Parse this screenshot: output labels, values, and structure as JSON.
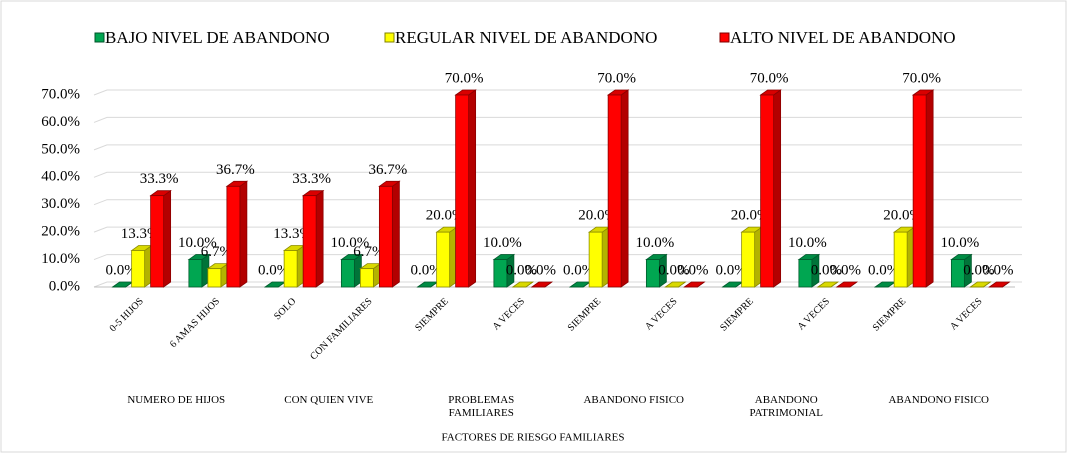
{
  "chart_data": {
    "type": "bar3d",
    "xlabel": "FACTORES DE RIESGO FAMILIARES",
    "groups": [
      {
        "name": "NUMERO DE HIJOS",
        "categories": [
          "0-5 HIJOS",
          "6 AMAS HIJOS"
        ]
      },
      {
        "name": "CON QUIEN VIVE",
        "categories": [
          "SOLO",
          "CON FAMILIARES"
        ]
      },
      {
        "name": "PROBLEMAS FAMILIARES",
        "categories": [
          "SIEMPRE",
          "A VECES"
        ]
      },
      {
        "name": "ABANDONO FISICO",
        "categories": [
          "SIEMPRE",
          "A VECES"
        ]
      },
      {
        "name": "ABANDONO PATRIMONIAL",
        "categories": [
          "SIEMPRE",
          "A VECES"
        ]
      },
      {
        "name": "ABANDONO FISICO",
        "categories": [
          "SIEMPRE",
          "A VECES"
        ]
      }
    ],
    "series": [
      {
        "name": "BAJO NIVEL DE ABANDONO",
        "color": "#00a651",
        "values": [
          0,
          10,
          0,
          10,
          0,
          10,
          0,
          10,
          0,
          10,
          0,
          10
        ],
        "value_labels": [
          "0.0%",
          "10.0%",
          "0.0%",
          "10.0%",
          "0.0%",
          "10.0%",
          "0.0%",
          "10.0%",
          "0.0%",
          "10.0%",
          "0.0%",
          "10.0%"
        ]
      },
      {
        "name": "REGULAR NIVEL DE ABANDONO",
        "color": "#ffff00",
        "values": [
          13.3,
          6.7,
          13.3,
          6.7,
          20,
          0,
          20,
          0,
          20,
          0,
          20,
          0
        ],
        "value_labels": [
          "13.3%",
          "6.7%",
          "13.3%",
          "6.7%",
          "20.0%",
          "0.0%",
          "20.0%",
          "0.0%",
          "20.0%",
          "0.0%",
          "20.0%",
          "0.0%"
        ]
      },
      {
        "name": "ALTO NIVEL DE ABANDONO",
        "color": "#ff0000",
        "values": [
          33.3,
          36.7,
          33.3,
          36.7,
          70,
          0,
          70,
          0,
          70,
          0,
          70,
          0
        ],
        "value_labels": [
          "33.3%",
          "36.7%",
          "33.3%",
          "36.7%",
          "70.0%",
          "0.0%",
          "70.0%",
          "0.0%",
          "70.0%",
          "0.0%",
          "70.0%",
          "0.0%"
        ]
      }
    ],
    "ylim": [
      0,
      70
    ],
    "yticks": [
      {
        "value": 0,
        "label": "0.0%"
      },
      {
        "value": 10,
        "label": "10.0%"
      },
      {
        "value": 20,
        "label": "20.0%"
      },
      {
        "value": 30,
        "label": "30.0%"
      },
      {
        "value": 40,
        "label": "40.0%"
      },
      {
        "value": 50,
        "label": "50.0%"
      },
      {
        "value": 60,
        "label": "60.0%"
      },
      {
        "value": 70,
        "label": "70.0%"
      }
    ],
    "grid": true,
    "legend": "top"
  }
}
